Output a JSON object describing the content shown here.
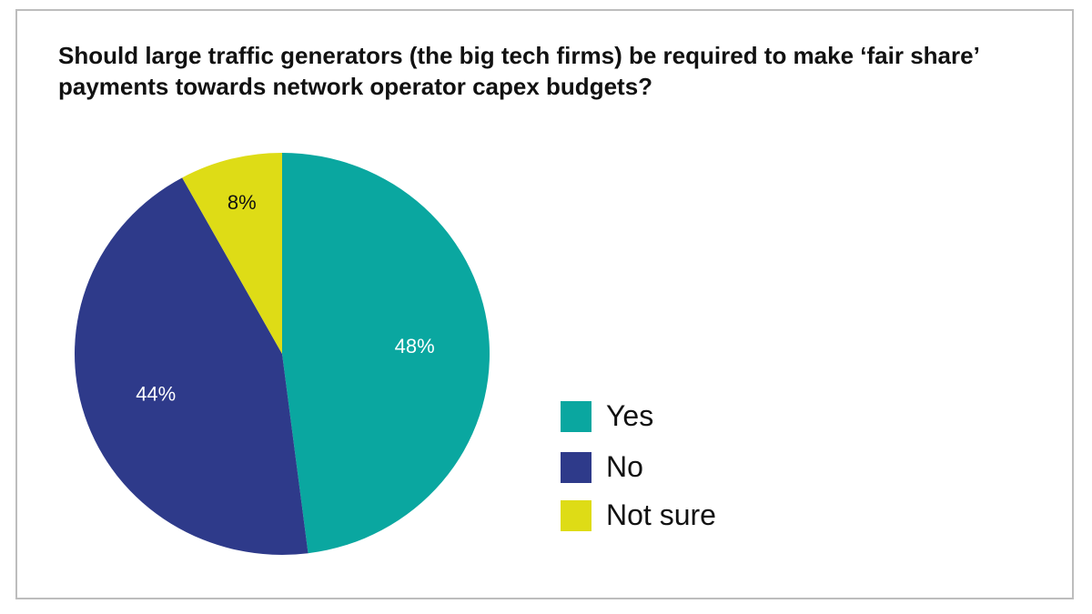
{
  "chart_data": {
    "type": "pie",
    "title": "Should large traffic generators (the big tech firms) be required to make ‘fair share’ payments towards network operator capex budgets?",
    "categories": [
      "Yes",
      "No",
      "Not sure"
    ],
    "values": [
      48,
      44,
      8
    ],
    "labels": [
      "48%",
      "44%",
      "8%"
    ],
    "colors": [
      "#0aa7a0",
      "#2e3a8a",
      "#dedc16"
    ],
    "label_colors": [
      "#ffffff",
      "#ffffff",
      "#111111"
    ],
    "start_angle": "12 o'clock",
    "direction": "clockwise",
    "legend_position": "right"
  }
}
